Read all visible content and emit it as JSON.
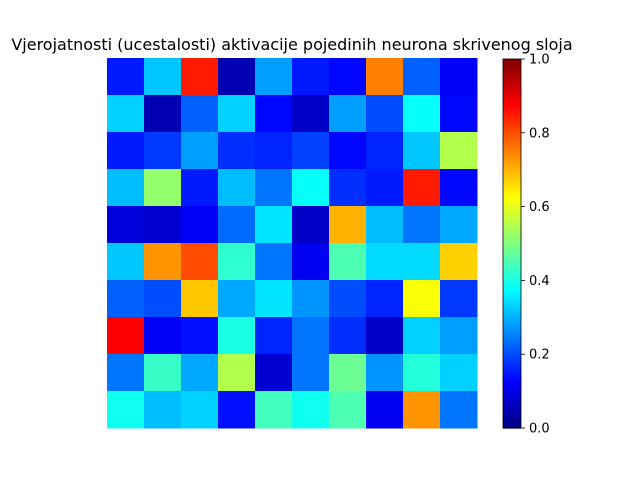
{
  "chart_data": {
    "type": "heatmap",
    "title": "Vjerojatnosti (ucestalosti) aktivacije pojedinih neurona skrivenog sloja",
    "colormap": "jet",
    "vmin": 0.0,
    "vmax": 1.0,
    "colorbar_ticks": [
      "0.0",
      "0.2",
      "0.4",
      "0.6",
      "0.8",
      "1.0"
    ],
    "grid": false,
    "values": [
      [
        0.15,
        0.32,
        0.85,
        0.05,
        0.28,
        0.15,
        0.13,
        0.75,
        0.22,
        0.12
      ],
      [
        0.33,
        0.05,
        0.22,
        0.33,
        0.13,
        0.07,
        0.28,
        0.2,
        0.38,
        0.13
      ],
      [
        0.15,
        0.18,
        0.28,
        0.17,
        0.16,
        0.19,
        0.13,
        0.16,
        0.32,
        0.55
      ],
      [
        0.31,
        0.52,
        0.15,
        0.31,
        0.24,
        0.38,
        0.17,
        0.15,
        0.85,
        0.13
      ],
      [
        0.09,
        0.08,
        0.12,
        0.23,
        0.35,
        0.07,
        0.7,
        0.31,
        0.24,
        0.29
      ],
      [
        0.32,
        0.73,
        0.8,
        0.42,
        0.24,
        0.11,
        0.45,
        0.34,
        0.34,
        0.67
      ],
      [
        0.22,
        0.2,
        0.68,
        0.29,
        0.35,
        0.27,
        0.2,
        0.16,
        0.62,
        0.18
      ],
      [
        0.88,
        0.12,
        0.14,
        0.4,
        0.16,
        0.24,
        0.17,
        0.07,
        0.33,
        0.28
      ],
      [
        0.24,
        0.43,
        0.29,
        0.55,
        0.08,
        0.24,
        0.48,
        0.27,
        0.41,
        0.33
      ],
      [
        0.39,
        0.31,
        0.33,
        0.14,
        0.44,
        0.39,
        0.45,
        0.11,
        0.73,
        0.24
      ]
    ]
  }
}
